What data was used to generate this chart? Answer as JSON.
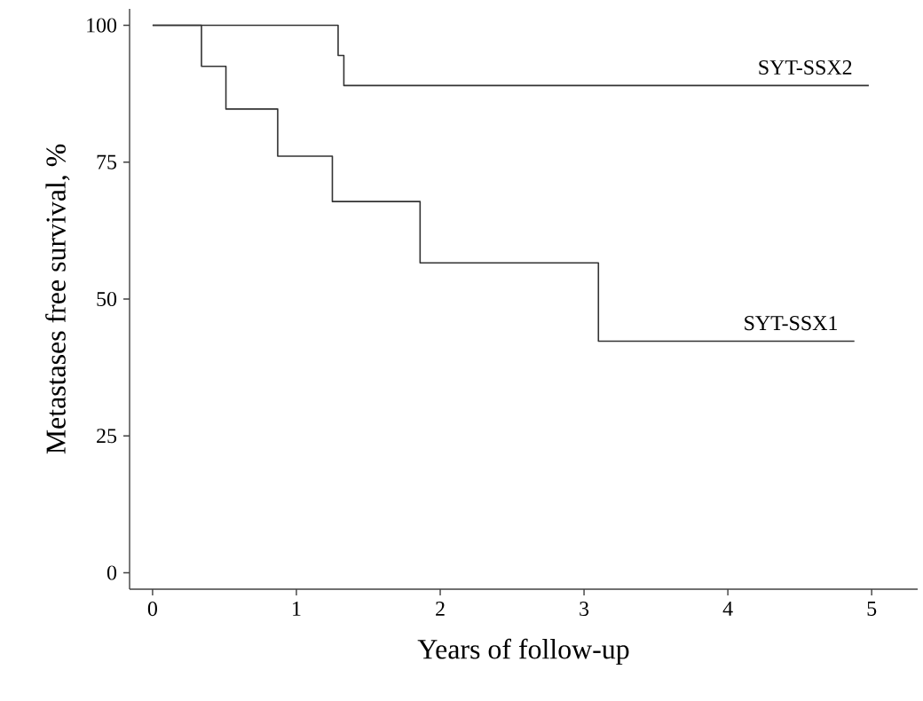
{
  "chart_data": {
    "type": "step",
    "xlabel": "Years of follow-up",
    "ylabel": "Metastases free survival, %",
    "series": [
      {
        "name": "SYT-SSX2",
        "color": "#333333",
        "x": [
          0,
          1.29,
          1.33,
          4.98
        ],
        "values": [
          100,
          94.5,
          89,
          89
        ]
      },
      {
        "name": "SYT-SSX1",
        "color": "#333333",
        "x": [
          0,
          0.34,
          0.51,
          0.87,
          1.25,
          1.86,
          3.1,
          4.88
        ],
        "values": [
          100,
          92.5,
          84.7,
          76.1,
          67.8,
          56.6,
          42.3,
          42.3
        ]
      }
    ],
    "xlim": [
      -0.16,
      5.32
    ],
    "ylim": [
      -3,
      103
    ],
    "xticks": [
      0,
      1,
      2,
      3,
      4,
      5
    ],
    "yticks": [
      0,
      25,
      50,
      75,
      100
    ],
    "grid": false,
    "legend": false,
    "marker": "none",
    "line_style": "solid"
  }
}
